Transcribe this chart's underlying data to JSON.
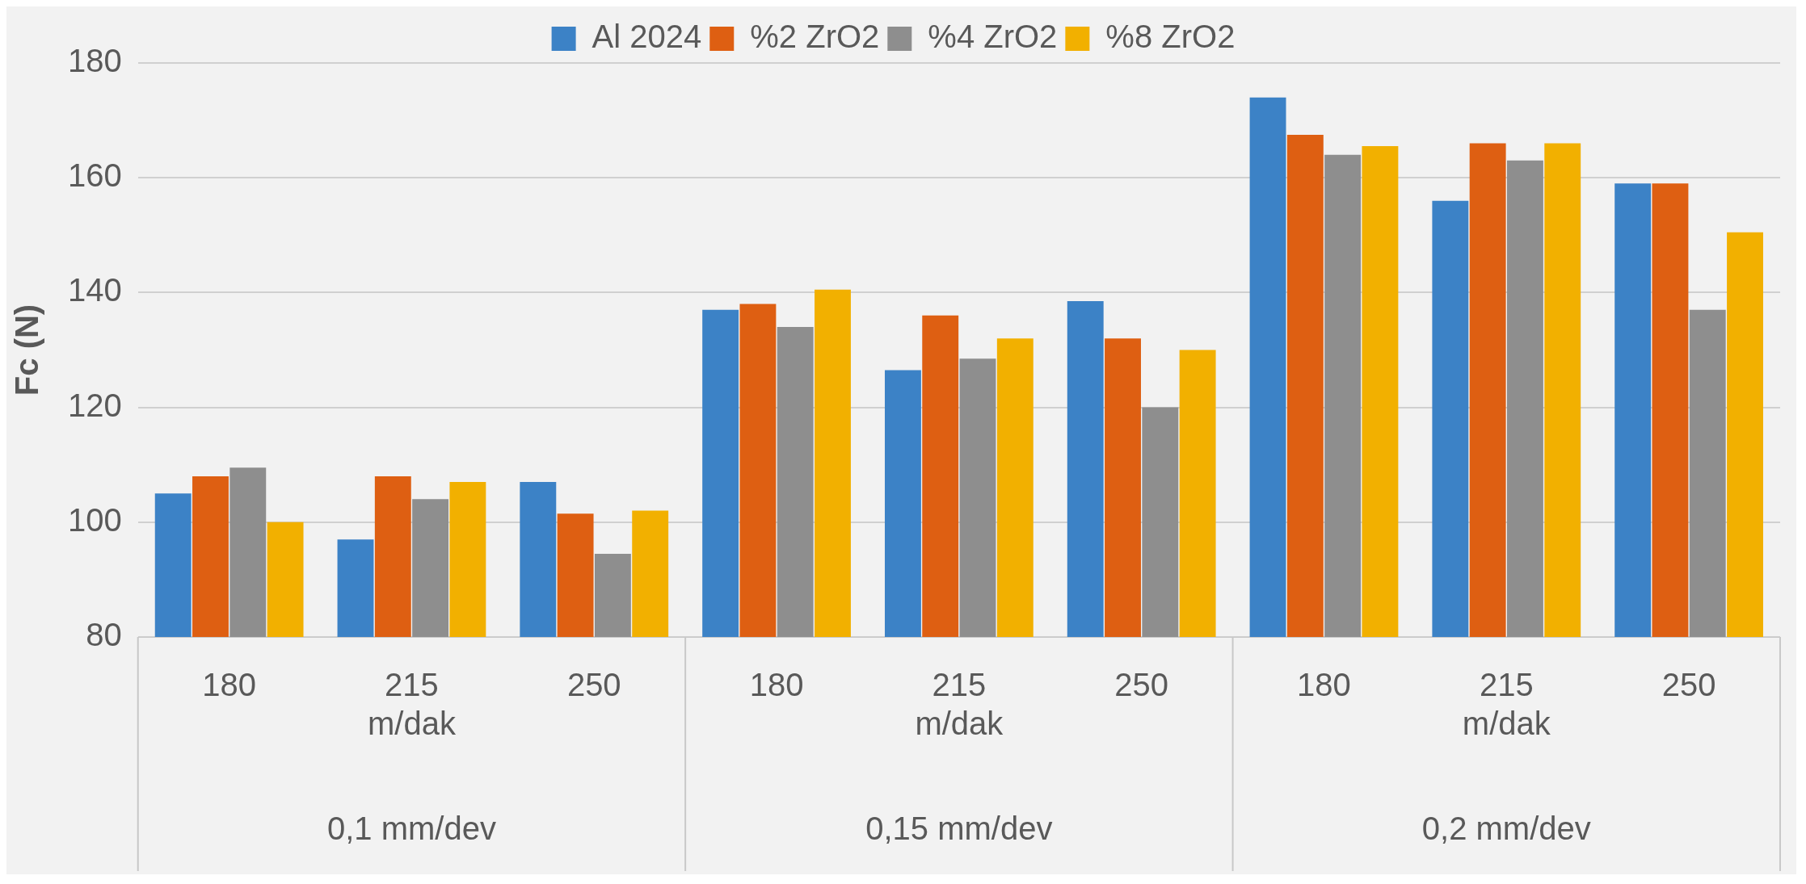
{
  "chart_data": {
    "type": "bar",
    "ylabel": "Fc (N)",
    "categories": [
      "180",
      "215\nm/dak",
      "250",
      "180",
      "215\nm/dak",
      "250",
      "180",
      "215\nm/dak",
      "250"
    ],
    "series": [
      {
        "name": "Al 2024",
        "color": "#3c82c6",
        "values": [
          105,
          97,
          107,
          137,
          126.5,
          138.5,
          174,
          156,
          159
        ]
      },
      {
        "name": "%2 ZrO2",
        "color": "#de5f12",
        "values": [
          108,
          108,
          101.5,
          138,
          136,
          132,
          167.5,
          166,
          159
        ]
      },
      {
        "name": "%4 ZrO2",
        "color": "#8e8e8e",
        "values": [
          109.5,
          104,
          94.5,
          134,
          128.5,
          120,
          164,
          163,
          137
        ]
      },
      {
        "name": "%8 ZrO2",
        "color": "#f2b000",
        "values": [
          100,
          107,
          102,
          140.5,
          132,
          130,
          165.5,
          166,
          150.5
        ]
      }
    ],
    "ylim": [
      80,
      180
    ],
    "yticks": [
      80,
      100,
      120,
      140,
      160,
      180
    ],
    "grid": "y",
    "legend": "top",
    "annotations": [
      "0,1 mm/dev",
      "0,15 mm/dev",
      "0,2 mm/dev"
    ]
  }
}
